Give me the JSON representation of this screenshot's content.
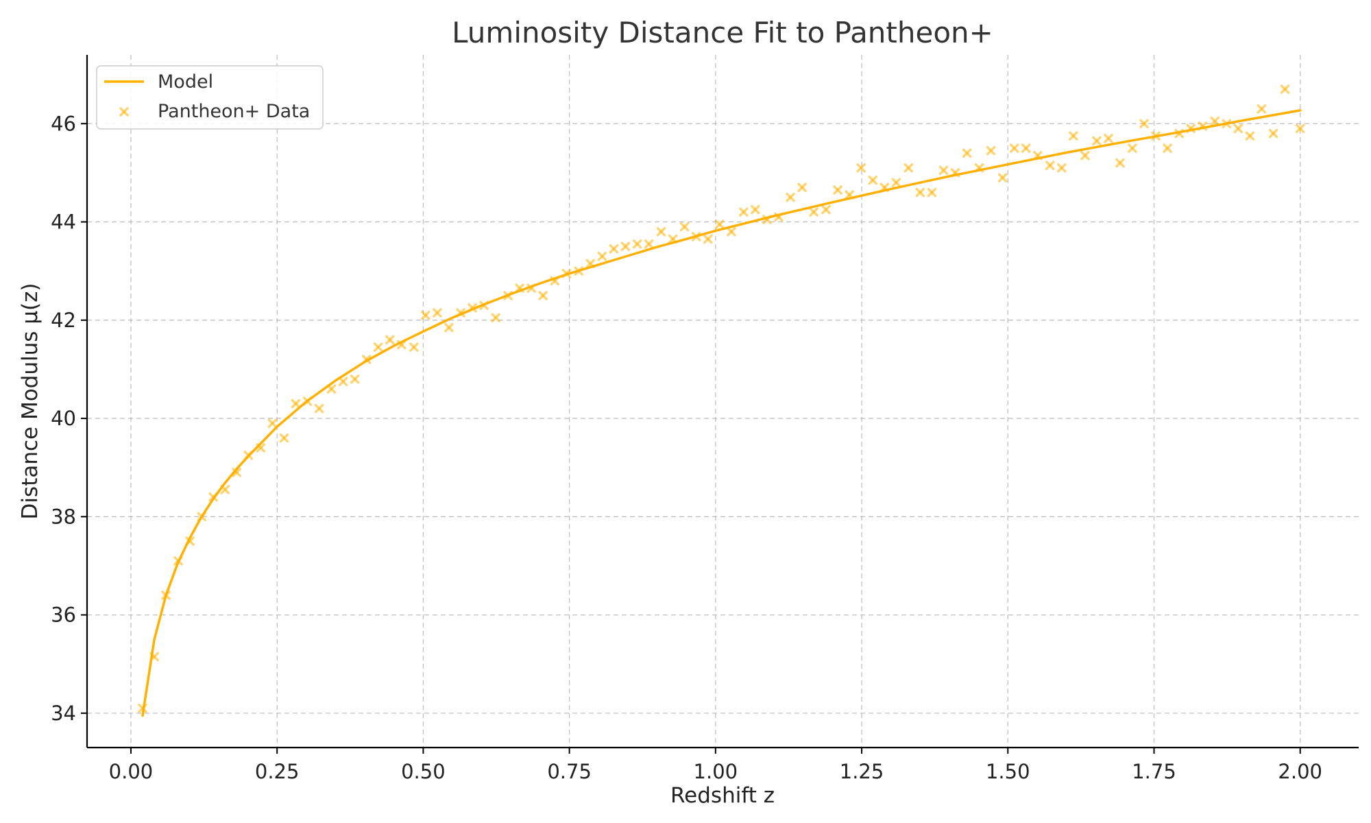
{
  "chart_data": {
    "type": "scatter",
    "title": "Luminosity Distance Fit to Pantheon+",
    "xlabel": "Redshift z",
    "ylabel": "Distance Modulus μ(z)",
    "xlim": [
      -0.075,
      2.1
    ],
    "ylim": [
      33.3,
      47.4
    ],
    "xticks": [
      0.0,
      0.25,
      0.5,
      0.75,
      1.0,
      1.25,
      1.5,
      1.75,
      2.0
    ],
    "xtick_labels": [
      "0.00",
      "0.25",
      "0.50",
      "0.75",
      "1.00",
      "1.25",
      "1.50",
      "1.75",
      "2.00"
    ],
    "yticks": [
      34,
      36,
      38,
      40,
      42,
      44,
      46
    ],
    "ytick_labels": [
      "34",
      "36",
      "38",
      "40",
      "42",
      "44",
      "46"
    ],
    "grid": true,
    "legend_position": "top-left",
    "colors": {
      "series": "#ffb000",
      "grid": "#b0b0b0",
      "text": "#222222"
    },
    "series": [
      {
        "name": "Model",
        "kind": "line",
        "x": [
          0.02,
          0.04,
          0.06,
          0.08,
          0.1,
          0.12,
          0.14,
          0.16,
          0.18,
          0.2,
          0.25,
          0.3,
          0.35,
          0.4,
          0.45,
          0.5,
          0.55,
          0.6,
          0.65,
          0.7,
          0.75,
          0.8,
          0.85,
          0.9,
          0.95,
          1.0,
          1.1,
          1.2,
          1.3,
          1.4,
          1.5,
          1.6,
          1.7,
          1.8,
          1.9,
          2.0
        ],
        "y": [
          33.95,
          35.5,
          36.4,
          37.05,
          37.55,
          37.98,
          38.35,
          38.67,
          38.96,
          39.22,
          39.83,
          40.34,
          40.77,
          41.15,
          41.48,
          41.77,
          42.05,
          42.3,
          42.53,
          42.75,
          42.95,
          43.13,
          43.31,
          43.49,
          43.65,
          43.82,
          44.12,
          44.4,
          44.67,
          44.93,
          45.17,
          45.41,
          45.63,
          45.84,
          46.06,
          46.27
        ]
      },
      {
        "name": "Pantheon+ Data",
        "kind": "scatter",
        "x": [
          0.02,
          0.04,
          0.06,
          0.081,
          0.101,
          0.121,
          0.141,
          0.161,
          0.181,
          0.201,
          0.222,
          0.242,
          0.262,
          0.282,
          0.302,
          0.322,
          0.343,
          0.363,
          0.383,
          0.403,
          0.423,
          0.443,
          0.463,
          0.484,
          0.504,
          0.524,
          0.544,
          0.564,
          0.584,
          0.604,
          0.624,
          0.645,
          0.665,
          0.685,
          0.705,
          0.725,
          0.745,
          0.766,
          0.786,
          0.806,
          0.826,
          0.846,
          0.866,
          0.886,
          0.907,
          0.927,
          0.947,
          0.967,
          0.987,
          1.007,
          1.027,
          1.048,
          1.068,
          1.088,
          1.108,
          1.128,
          1.148,
          1.168,
          1.189,
          1.209,
          1.229,
          1.249,
          1.269,
          1.289,
          1.309,
          1.33,
          1.35,
          1.37,
          1.39,
          1.41,
          1.43,
          1.451,
          1.471,
          1.491,
          1.511,
          1.531,
          1.551,
          1.572,
          1.592,
          1.612,
          1.632,
          1.652,
          1.672,
          1.692,
          1.713,
          1.733,
          1.753,
          1.773,
          1.793,
          1.813,
          1.833,
          1.854,
          1.874,
          1.894,
          1.914,
          1.934,
          1.954,
          1.974,
          2.0
        ],
        "y": [
          34.1,
          35.15,
          36.4,
          37.1,
          37.5,
          38.0,
          38.4,
          38.55,
          38.9,
          39.25,
          39.4,
          39.9,
          39.6,
          40.3,
          40.35,
          40.2,
          40.6,
          40.75,
          40.8,
          41.2,
          41.45,
          41.6,
          41.5,
          41.45,
          42.1,
          42.15,
          41.85,
          42.15,
          42.25,
          42.3,
          42.05,
          42.5,
          42.65,
          42.65,
          42.5,
          42.8,
          42.95,
          43.0,
          43.15,
          43.3,
          43.45,
          43.5,
          43.55,
          43.55,
          43.8,
          43.65,
          43.9,
          43.7,
          43.65,
          43.95,
          43.8,
          44.2,
          44.25,
          44.05,
          44.1,
          44.5,
          44.7,
          44.2,
          44.25,
          44.65,
          44.55,
          45.1,
          44.85,
          44.7,
          44.8,
          45.1,
          44.6,
          44.6,
          45.05,
          45.0,
          45.4,
          45.1,
          45.45,
          44.9,
          45.5,
          45.5,
          45.35,
          45.15,
          45.1,
          45.75,
          45.35,
          45.65,
          45.7,
          45.2,
          45.5,
          46.0,
          45.75,
          45.5,
          45.8,
          45.9,
          45.95,
          46.05,
          46.0,
          45.9,
          45.75,
          46.3,
          45.8,
          46.7,
          45.9
        ]
      }
    ]
  }
}
